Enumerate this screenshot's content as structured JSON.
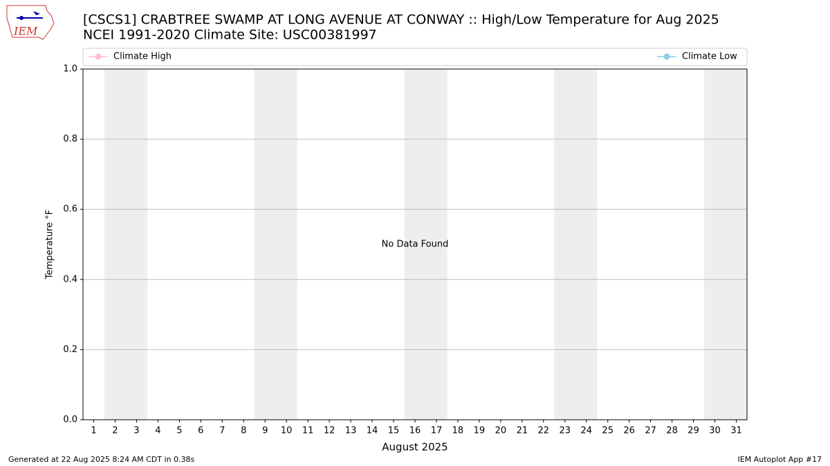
{
  "chart_data": {
    "type": "line",
    "title": "[CSCS1] CRABTREE SWAMP AT LONG AVENUE AT CONWAY :: High/Low Temperature for Aug 2025",
    "subtitle": "NCEI 1991-2020 Climate Site: USC00381997",
    "logo_text": "IEM",
    "x_label": "August 2025",
    "y_label": "Temperature °F",
    "annotation": "No Data Found",
    "footer_left": "Generated at 22 Aug 2025 8:24 AM CDT in 0.38s",
    "footer_right": "IEM Autoplot App #17",
    "series": [
      {
        "name": "Climate High",
        "color": "#ffc0cb",
        "values": []
      },
      {
        "name": "Climate Low",
        "color": "#87ceeb",
        "values": []
      }
    ],
    "xlim": [
      0.5,
      31.5
    ],
    "xticks": [
      1,
      2,
      3,
      4,
      5,
      6,
      7,
      8,
      9,
      10,
      11,
      12,
      13,
      14,
      15,
      16,
      17,
      18,
      19,
      20,
      21,
      22,
      23,
      24,
      25,
      26,
      27,
      28,
      29,
      30,
      31
    ],
    "ylim": [
      0,
      1
    ],
    "yticks": [
      {
        "value": 0,
        "label": "0.0"
      },
      {
        "value": 0.2,
        "label": "0.2"
      },
      {
        "value": 0.4,
        "label": "0.4"
      },
      {
        "value": 0.6,
        "label": "0.6"
      },
      {
        "value": 0.8,
        "label": "0.8"
      },
      {
        "value": 1,
        "label": "1.0"
      }
    ],
    "shaded_x_ranges": [
      [
        1.5,
        3.5
      ],
      [
        8.5,
        10.5
      ],
      [
        15.5,
        17.5
      ],
      [
        22.5,
        24.5
      ],
      [
        29.5,
        31.5
      ]
    ],
    "shade_color": "#eeeeee",
    "grid": true
  }
}
